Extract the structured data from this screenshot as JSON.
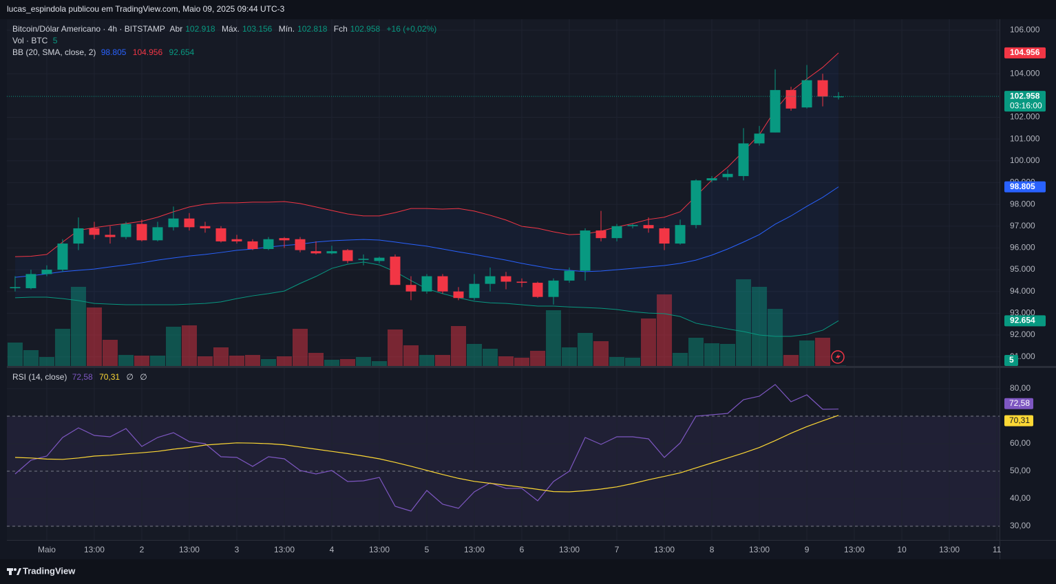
{
  "header": {
    "text": "lucas_espindola publicou em TradingView.com, Maio 09, 2025 09:44 UTC-3"
  },
  "footer": {
    "brand": "TradingView"
  },
  "chart_data": [
    {
      "type": "candlestick",
      "title": "Bitcoin/Dólar Americano · 4h · BITSTAMP",
      "ohlc_labels": [
        "Abr",
        "Máx.",
        "Mín.",
        "Fch"
      ],
      "change": "+16 (+0,02%)",
      "countdown": "03:16:00",
      "categories": [
        null,
        null,
        null,
        null,
        null,
        null,
        null,
        null,
        null,
        null,
        null,
        null,
        null,
        null,
        null,
        null,
        null,
        null,
        null,
        null,
        null,
        null,
        null,
        null,
        null,
        null,
        null,
        null,
        null,
        null,
        null,
        null,
        null,
        null,
        null,
        null,
        null,
        null,
        null,
        null,
        null,
        null,
        null,
        null,
        null,
        null,
        null,
        null,
        null,
        null,
        null,
        null,
        null
      ],
      "open": [
        94.15,
        94.15,
        94.8,
        95.0,
        96.2,
        96.9,
        96.6,
        96.5,
        97.1,
        96.35,
        96.95,
        97.35,
        97.0,
        96.9,
        96.4,
        96.3,
        95.95,
        96.45,
        96.4,
        95.85,
        95.75,
        95.9,
        95.45,
        95.4,
        95.6,
        94.3,
        94.0,
        94.7,
        94.0,
        93.7,
        94.35,
        94.7,
        94.45,
        94.4,
        93.75,
        94.5,
        94.95,
        96.8,
        96.45,
        97.0,
        97.05,
        96.9,
        96.2,
        97.05,
        99.1,
        99.25,
        99.3,
        100.8,
        101.3,
        103.25,
        102.45,
        103.7,
        102.918
      ],
      "high": [
        94.7,
        95.0,
        95.2,
        96.4,
        97.4,
        97.2,
        97.0,
        97.2,
        97.3,
        97.2,
        97.9,
        97.6,
        97.2,
        97.0,
        96.6,
        96.4,
        96.5,
        96.5,
        96.5,
        96.3,
        96.1,
        95.95,
        95.7,
        95.6,
        95.7,
        94.7,
        94.8,
        94.8,
        94.2,
        94.8,
        95.1,
        94.9,
        94.6,
        94.45,
        94.6,
        95.1,
        96.9,
        97.7,
        97.1,
        97.1,
        97.4,
        96.95,
        97.3,
        99.15,
        99.3,
        99.6,
        101.5,
        101.6,
        104.2,
        103.4,
        104.4,
        104.0,
        103.156
      ],
      "low": [
        94.0,
        94.1,
        94.7,
        94.9,
        95.9,
        96.4,
        96.2,
        96.4,
        96.3,
        96.3,
        96.8,
        96.8,
        96.7,
        96.25,
        96.2,
        95.9,
        95.9,
        96.0,
        95.8,
        95.7,
        95.7,
        95.3,
        95.2,
        95.3,
        94.3,
        93.6,
        93.9,
        93.9,
        93.6,
        93.6,
        94.0,
        94.1,
        94.2,
        93.7,
        93.4,
        94.4,
        94.5,
        96.3,
        96.3,
        96.9,
        96.7,
        95.9,
        96.15,
        96.9,
        99.0,
        99.1,
        99.1,
        100.7,
        101.3,
        102.3,
        102.4,
        102.5,
        102.818
      ],
      "close": [
        94.2,
        94.8,
        95.0,
        96.2,
        96.9,
        96.6,
        96.5,
        97.1,
        96.35,
        96.95,
        97.35,
        96.95,
        96.9,
        96.3,
        96.3,
        95.95,
        96.4,
        96.35,
        95.9,
        95.75,
        95.85,
        95.4,
        95.5,
        95.55,
        94.3,
        94.0,
        94.7,
        94.0,
        93.7,
        94.35,
        94.7,
        94.45,
        94.4,
        93.75,
        94.5,
        94.95,
        96.8,
        96.45,
        97.0,
        97.05,
        96.9,
        96.2,
        97.05,
        99.1,
        99.2,
        99.4,
        100.8,
        101.25,
        103.25,
        102.4,
        103.7,
        102.95,
        102.958
      ],
      "up_color": "#089981",
      "down_color": "#f23645",
      "volume": {
        "name": "Vol · BTC",
        "values": [
          340,
          230,
          130,
          540,
          1150,
          850,
          380,
          160,
          150,
          150,
          570,
          590,
          140,
          270,
          150,
          160,
          100,
          140,
          540,
          190,
          90,
          100,
          130,
          70,
          530,
          300,
          160,
          160,
          580,
          320,
          250,
          140,
          120,
          220,
          810,
          270,
          480,
          360,
          130,
          120,
          690,
          1040,
          190,
          410,
          330,
          320,
          1260,
          1150,
          830,
          160,
          370,
          410,
          5
        ],
        "vlim": [
          0,
          1400
        ]
      },
      "bands": {
        "name": "BB (20, SMA, close, 2)",
        "series": [
          {
            "color": "#2962ff",
            "values": [
              94.65,
              94.72,
              94.81,
              94.91,
              94.97,
              95.03,
              95.13,
              95.22,
              95.32,
              95.44,
              95.54,
              95.63,
              95.7,
              95.79,
              95.89,
              95.95,
              96.04,
              96.11,
              96.17,
              96.27,
              96.33,
              96.36,
              96.39,
              96.36,
              96.27,
              96.17,
              96.08,
              95.95,
              95.82,
              95.7,
              95.57,
              95.44,
              95.29,
              95.16,
              95.03,
              94.97,
              94.91,
              94.94,
              95.0,
              95.06,
              95.13,
              95.19,
              95.29,
              95.44,
              95.67,
              95.95,
              96.27,
              96.61,
              97.09,
              97.47,
              97.91,
              98.32,
              98.805
            ]
          },
          {
            "color": "#f23645",
            "values": [
              95.6,
              95.62,
              95.7,
              96.27,
              96.81,
              96.93,
              97.03,
              97.12,
              97.22,
              97.41,
              97.66,
              97.88,
              98.01,
              98.07,
              98.07,
              98.1,
              98.1,
              98.13,
              98.04,
              97.88,
              97.72,
              97.56,
              97.47,
              97.47,
              97.62,
              97.81,
              97.81,
              97.78,
              97.81,
              97.69,
              97.5,
              97.28,
              96.99,
              96.9,
              96.74,
              96.61,
              96.64,
              96.77,
              96.96,
              97.12,
              97.31,
              97.41,
              97.66,
              98.38,
              99.11,
              99.71,
              100.44,
              101.2,
              102.33,
              103.19,
              103.76,
              104.29,
              104.956
            ]
          },
          {
            "color": "#089981",
            "values": [
              93.71,
              93.74,
              93.74,
              93.67,
              93.58,
              93.45,
              93.42,
              93.39,
              93.39,
              93.39,
              93.39,
              93.42,
              93.45,
              93.52,
              93.67,
              93.8,
              93.9,
              94.02,
              94.37,
              94.69,
              95.06,
              95.25,
              95.35,
              95.22,
              94.91,
              94.5,
              94.12,
              93.9,
              93.71,
              93.55,
              93.48,
              93.45,
              93.39,
              93.33,
              93.33,
              93.29,
              93.26,
              93.23,
              93.17,
              93.07,
              93.01,
              92.98,
              92.85,
              92.54,
              92.41,
              92.28,
              92.16,
              92.0,
              91.94,
              91.94,
              92.03,
              92.22,
              92.654
            ]
          }
        ]
      },
      "ylim": [
        90.58,
        106.5
      ],
      "yticks": [
        {
          "value": 91,
          "label": "91.000"
        },
        {
          "value": 92,
          "label": "92.000"
        },
        {
          "value": 93,
          "label": "93.000"
        },
        {
          "value": 94,
          "label": "94.000"
        },
        {
          "value": 95,
          "label": "95.000"
        },
        {
          "value": 96,
          "label": "96.000"
        },
        {
          "value": 97,
          "label": "97.000"
        },
        {
          "value": 98,
          "label": "98.000"
        },
        {
          "value": 99,
          "label": "99.000"
        },
        {
          "value": 100,
          "label": "100.000"
        },
        {
          "value": 101,
          "label": "101.000"
        },
        {
          "value": 102,
          "label": "102.000"
        },
        {
          "value": 104,
          "label": "104.000"
        },
        {
          "value": 106,
          "label": "106.000"
        }
      ],
      "xlim": [
        -0.52,
        62.17
      ],
      "xticks": [
        {
          "value": 2,
          "label": "Maio"
        },
        {
          "value": 5,
          "label": "13:00"
        },
        {
          "value": 8,
          "label": "2"
        },
        {
          "value": 11,
          "label": "13:00"
        },
        {
          "value": 14,
          "label": "3"
        },
        {
          "value": 17,
          "label": "13:00"
        },
        {
          "value": 20,
          "label": "4"
        },
        {
          "value": 23,
          "label": "13:00"
        },
        {
          "value": 26,
          "label": "5"
        },
        {
          "value": 29,
          "label": "13:00"
        },
        {
          "value": 32,
          "label": "6"
        },
        {
          "value": 35,
          "label": "13:00"
        },
        {
          "value": 38,
          "label": "7"
        },
        {
          "value": 41,
          "label": "13:00"
        },
        {
          "value": 44,
          "label": "8"
        },
        {
          "value": 47,
          "label": "13:00"
        },
        {
          "value": 50,
          "label": "9"
        },
        {
          "value": 53,
          "label": "13:00"
        },
        {
          "value": 56,
          "label": "10"
        },
        {
          "value": 59,
          "label": "13:00"
        },
        {
          "value": 62,
          "label": "11"
        }
      ],
      "grid": true
    },
    {
      "type": "line",
      "title": "RSI (14, close)",
      "extras": [
        "∅",
        "∅"
      ],
      "series": [
        {
          "color": "#7e57c2",
          "last_label": "72,58",
          "values": [
            49,
            54,
            55.5,
            62.25,
            65.75,
            63,
            62.5,
            65.5,
            59,
            62.25,
            64,
            60.75,
            60,
            55.25,
            55,
            51.75,
            55.25,
            54.5,
            50.25,
            49,
            50.25,
            46.25,
            46.5,
            47.75,
            37.25,
            35.5,
            43,
            38,
            36.5,
            42.5,
            45.75,
            43.75,
            43.75,
            39.25,
            46.25,
            50,
            62.25,
            59.75,
            62.5,
            62.5,
            61.75,
            55,
            60.25,
            70,
            70.5,
            71,
            76,
            77.25,
            81.5,
            75.25,
            77.75,
            72.5,
            72.58
          ]
        },
        {
          "color": "#fdd835",
          "last_label": "70,31",
          "values": [
            55.0,
            54.8,
            54.4,
            54.3,
            54.8,
            55.5,
            55.8,
            56.3,
            56.7,
            57.2,
            58.0,
            58.6,
            59.5,
            59.9,
            60.3,
            60.2,
            60.0,
            59.6,
            58.8,
            58.0,
            57.2,
            56.4,
            55.5,
            54.5,
            53.2,
            51.8,
            50.3,
            48.8,
            47.4,
            46.3,
            45.6,
            44.9,
            44.2,
            43.4,
            42.6,
            42.5,
            42.9,
            43.5,
            44.3,
            45.5,
            46.9,
            48.1,
            49.4,
            51.2,
            53.0,
            54.8,
            56.6,
            58.6,
            61.1,
            63.8,
            66.2,
            68.3,
            70.31
          ]
        }
      ],
      "levels": [
        70,
        50,
        30
      ],
      "ylim": [
        25,
        87.5
      ],
      "yticks": [
        {
          "value": 30,
          "label": "30,00"
        },
        {
          "value": 40,
          "label": "40,00"
        },
        {
          "value": 50,
          "label": "50,00"
        },
        {
          "value": 60,
          "label": "60,00"
        },
        {
          "value": 80,
          "label": "80,00"
        }
      ],
      "grid": true
    }
  ]
}
